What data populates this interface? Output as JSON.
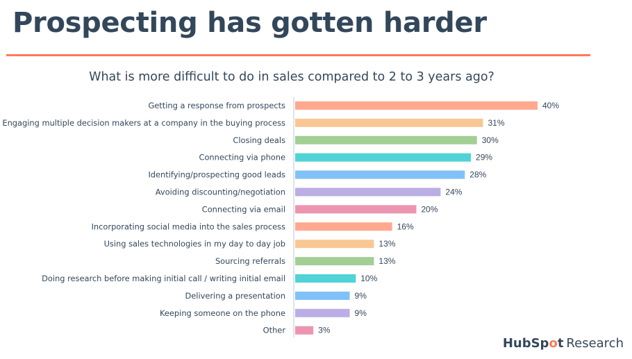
{
  "header": {
    "title": "Prospecting has gotten harder",
    "rule_color": "#ff7a59"
  },
  "footer": {
    "logo_hub": "HubSp",
    "logo_o": "o",
    "logo_t": "t",
    "logo_research": "Research"
  },
  "chart_data": {
    "type": "bar",
    "orientation": "horizontal",
    "title": "What is more difficult to do in sales compared to 2 to 3 years ago?",
    "xlabel": "",
    "ylabel": "",
    "xlim": [
      0,
      40
    ],
    "unit": "%",
    "grid": false,
    "categories": [
      "Getting a response from prospects",
      "Engaging multiple decision makers at a company in the buying process",
      "Closing deals",
      "Connecting via phone",
      "Identifying/prospecting good leads",
      "Avoiding discounting/negotiation",
      "Connecting via email",
      "Incorporating social media into the sales process",
      "Using sales technologies in my day to day job",
      "Sourcing referrals",
      "Doing research before making initial call / writing initial email",
      "Delivering a presentation",
      "Keeping someone on the phone",
      "Other"
    ],
    "values": [
      40,
      31,
      30,
      29,
      28,
      24,
      20,
      16,
      13,
      13,
      10,
      9,
      9,
      3
    ],
    "value_labels": [
      "40%",
      "31%",
      "30%",
      "29%",
      "28%",
      "24%",
      "20%",
      "16%",
      "13%",
      "13%",
      "10%",
      "9%",
      "9%",
      "3%"
    ],
    "colors": [
      "#ffa98f",
      "#f9c794",
      "#a3cf95",
      "#4fd3d6",
      "#80c2f7",
      "#bbaee4",
      "#ec95b0",
      "#ffa98f",
      "#f9c794",
      "#a3cf95",
      "#4fd3d6",
      "#80c2f7",
      "#bbaee4",
      "#ec95b0"
    ],
    "axis_color": "#dfe3eb"
  }
}
